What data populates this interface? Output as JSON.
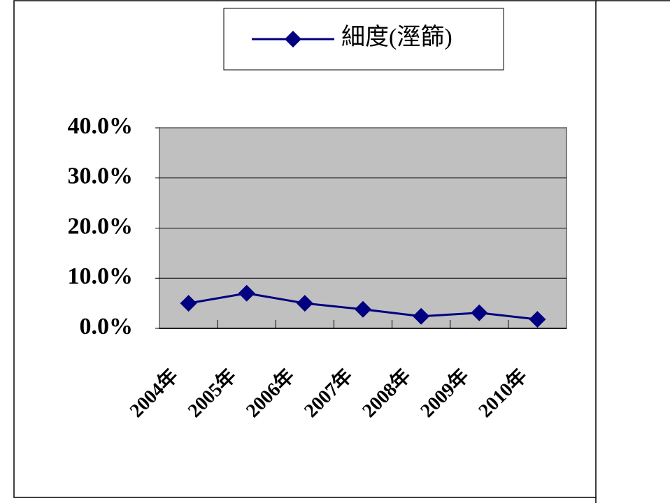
{
  "chart_data": {
    "type": "line",
    "categories": [
      "2004年",
      "2005年",
      "2006年",
      "2007年",
      "2008年",
      "2009年",
      "2010年"
    ],
    "series": [
      {
        "name": "細度(溼篩)",
        "color": "#000080",
        "values": [
          5.0,
          7.0,
          5.0,
          3.8,
          2.4,
          3.1,
          1.8
        ]
      }
    ],
    "ylim": [
      0,
      40
    ],
    "yticks": [
      {
        "value": 0,
        "label": "0.0%"
      },
      {
        "value": 10,
        "label": "10.0%"
      },
      {
        "value": 20,
        "label": "20.0%"
      },
      {
        "value": 30,
        "label": "30.0%"
      },
      {
        "value": 40,
        "label": "40.0%"
      }
    ],
    "grid": true,
    "legend": "top"
  }
}
